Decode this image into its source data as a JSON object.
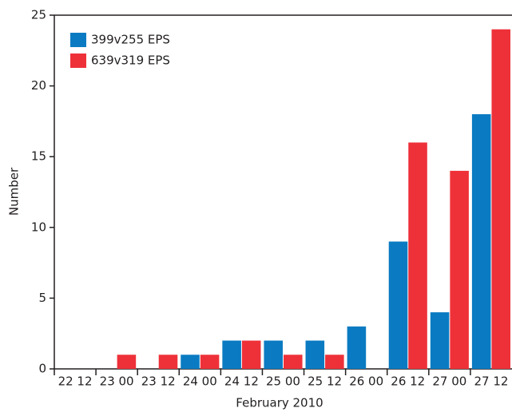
{
  "chart_data": {
    "type": "bar",
    "categories": [
      "22 12",
      "23 00",
      "23 12",
      "24 00",
      "24 12",
      "25 00",
      "25 12",
      "26 00",
      "26 12",
      "27 00",
      "27 12"
    ],
    "series": [
      {
        "name": "399v255 EPS",
        "color": "#0a7bc2",
        "values": [
          0,
          0,
          0,
          1,
          2,
          2,
          2,
          3,
          9,
          4,
          18
        ]
      },
      {
        "name": "639v319 EPS",
        "color": "#ee3139",
        "values": [
          0,
          1,
          1,
          1,
          2,
          1,
          1,
          0,
          16,
          14,
          24
        ]
      }
    ],
    "xlabel": "February 2010",
    "ylabel": "Number",
    "ylim": [
      0,
      25
    ],
    "yticks": [
      0,
      5,
      10,
      15,
      20,
      25
    ],
    "legend": "upper-left"
  }
}
